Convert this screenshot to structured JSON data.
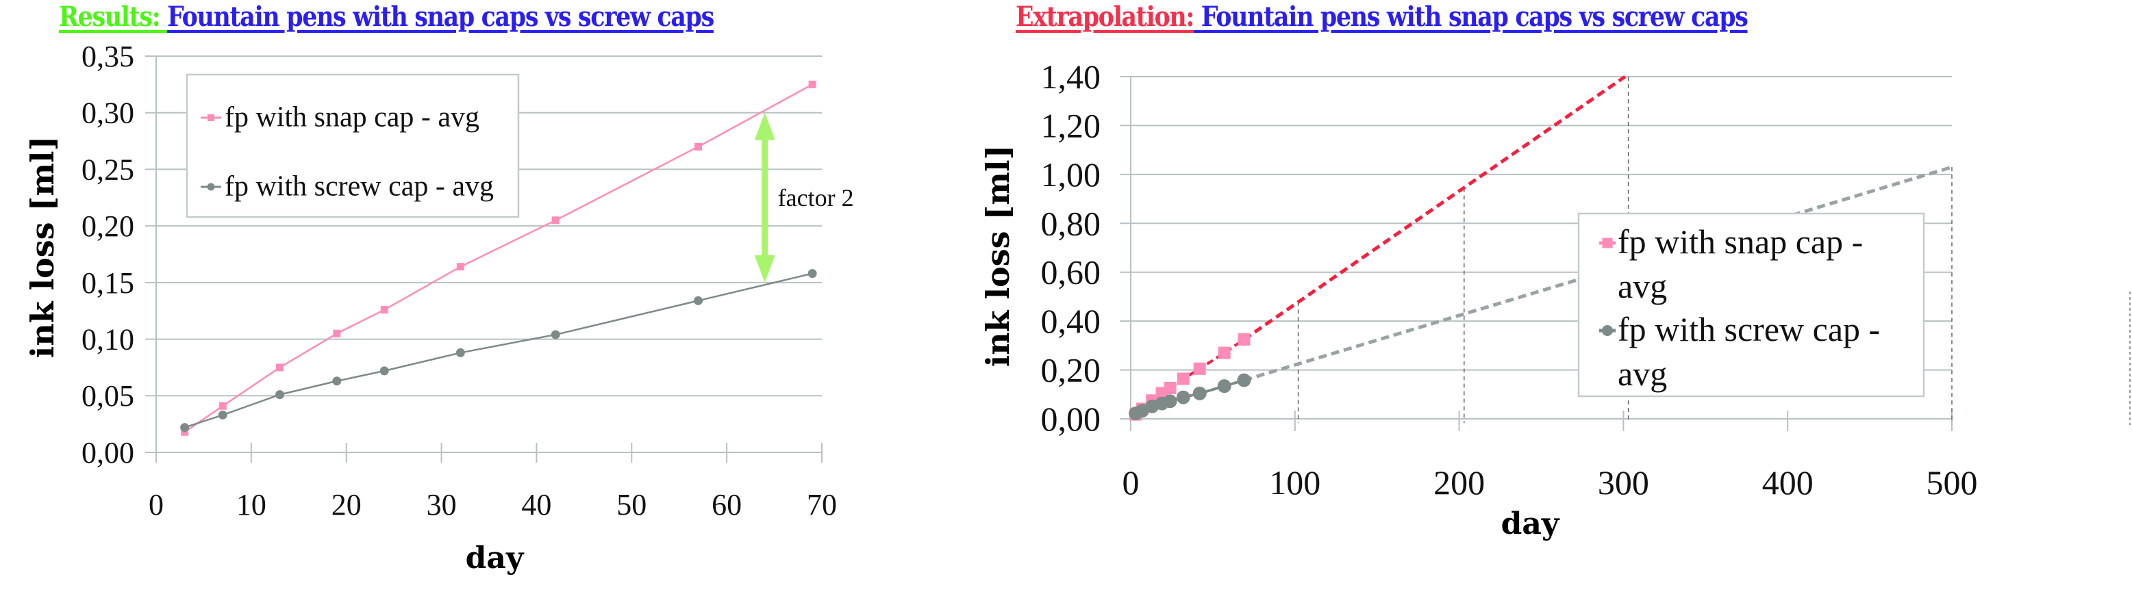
{
  "titles": {
    "left": {
      "prefix": "Results:",
      "main": "Fountain pens with snap caps vs screw caps",
      "prefix_color": "#4cf514",
      "main_color": "#2a1ff0"
    },
    "right": {
      "prefix": "Extrapolation:",
      "main": "Fountain pens with snap caps vs screw caps",
      "prefix_color": "#f5304c",
      "main_color": "#2a1ff0"
    }
  },
  "colors": {
    "snap": "#ff8cb8",
    "snap_extrapolation": "#f5203f",
    "screw": "#7e8a88",
    "screw_extrapolation": "#99a3a1",
    "grid": "#b8c2c0",
    "annotation_arrow": "#a8f56c"
  },
  "chart_data": [
    {
      "type": "line",
      "title": "Results: Fountain pens with snap caps vs screw caps",
      "xlabel": "day",
      "ylabel": "ink loss [ml]",
      "xlim": [
        0,
        70
      ],
      "ylim": [
        0,
        0.35
      ],
      "xticks": [
        0,
        10,
        20,
        30,
        40,
        50,
        60,
        70
      ],
      "xtick_labels": [
        "0",
        "10",
        "20",
        "30",
        "40",
        "50",
        "60",
        "70"
      ],
      "yticks": [
        0,
        0.05,
        0.1,
        0.15,
        0.2,
        0.25,
        0.3,
        0.35
      ],
      "ytick_labels": [
        "0,00",
        "0,05",
        "0,10",
        "0,15",
        "0,20",
        "0,25",
        "0,30",
        "0,35"
      ],
      "grid": true,
      "legend_position": "top-left",
      "x": [
        3,
        7,
        13,
        19,
        24,
        32,
        42,
        57,
        69
      ],
      "series": [
        {
          "name": "fp with snap cap - avg",
          "marker": "square",
          "values": [
            0.018,
            0.041,
            0.075,
            0.105,
            0.126,
            0.164,
            0.205,
            0.27,
            0.325
          ]
        },
        {
          "name": "fp with screw cap - avg",
          "marker": "circle",
          "values": [
            0.022,
            0.033,
            0.051,
            0.063,
            0.072,
            0.088,
            0.104,
            0.134,
            0.158
          ]
        }
      ],
      "annotations": [
        {
          "type": "double-arrow",
          "x": 64,
          "y_from": 0.3,
          "y_to": 0.15,
          "label": "factor 2"
        }
      ]
    },
    {
      "type": "line",
      "title": "Extrapolation: Fountain pens with snap caps vs screw caps",
      "xlabel": "day",
      "ylabel": "ink loss [ml]",
      "xlim": [
        0,
        500
      ],
      "ylim": [
        0,
        1.4
      ],
      "xticks": [
        0,
        100,
        200,
        300,
        400,
        500
      ],
      "xtick_labels": [
        "0",
        "100",
        "200",
        "300",
        "400",
        "500"
      ],
      "yticks": [
        0,
        0.2,
        0.4,
        0.6,
        0.8,
        1.0,
        1.2,
        1.4
      ],
      "ytick_labels": [
        "0,00",
        "0,20",
        "0,40",
        "0,60",
        "0,80",
        "1,00",
        "1,20",
        "1,40"
      ],
      "grid": true,
      "legend_position": "center-right",
      "x": [
        3,
        7,
        13,
        19,
        24,
        32,
        42,
        57,
        69
      ],
      "series": [
        {
          "name": "fp with snap cap - avg",
          "marker": "square",
          "values": [
            0.018,
            0.041,
            0.075,
            0.105,
            0.126,
            0.164,
            0.205,
            0.27,
            0.325
          ],
          "extrapolation": {
            "style": "dashed",
            "x": [
              69,
              301
            ],
            "values": [
              0.325,
              1.4
            ]
          }
        },
        {
          "name": "fp with screw cap - avg",
          "marker": "circle",
          "values": [
            0.022,
            0.033,
            0.051,
            0.063,
            0.072,
            0.088,
            0.104,
            0.134,
            0.158
          ],
          "extrapolation": {
            "style": "dashed",
            "x": [
              69,
              500
            ],
            "values": [
              0.158,
              1.03
            ]
          }
        }
      ],
      "drop_lines": [
        {
          "x": 102,
          "y": 0.478
        },
        {
          "x": 203,
          "y": 0.945
        },
        {
          "x": 303,
          "y": 1.4
        },
        {
          "x": 500,
          "y": 1.03
        }
      ]
    }
  ]
}
